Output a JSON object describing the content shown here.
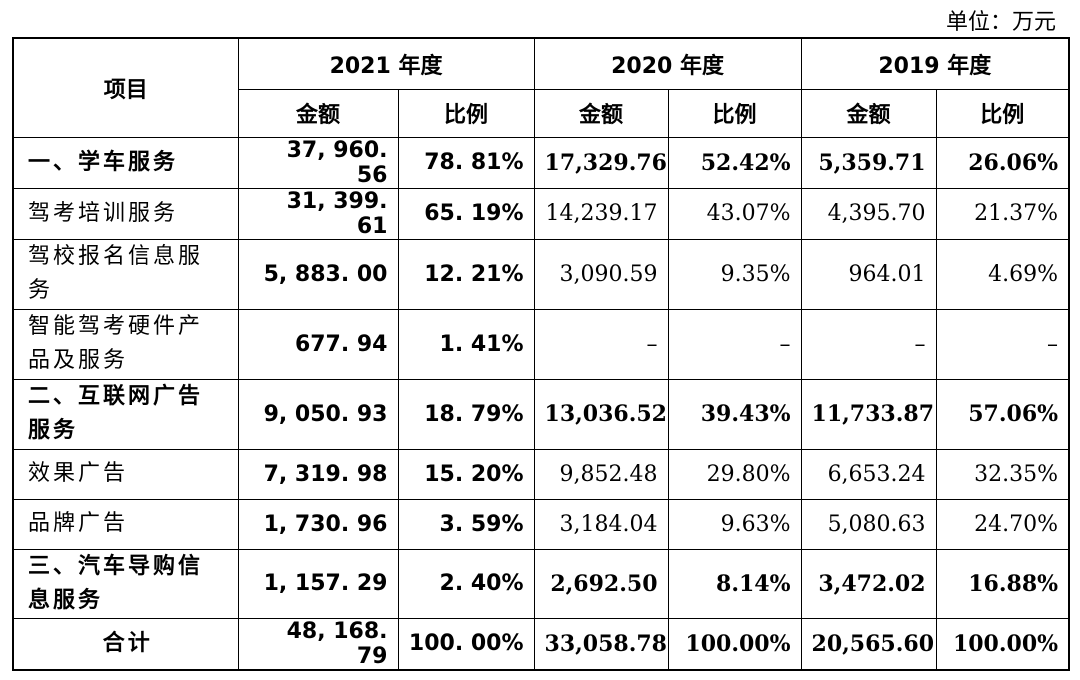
{
  "unit": "单位：万元",
  "header": {
    "item": "项目",
    "years": [
      "2021 年度",
      "2020 年度",
      "2019 年度"
    ],
    "columns": [
      "金额",
      "比例",
      "金额",
      "比例",
      "金额",
      "比例"
    ]
  },
  "rows": [
    {
      "label": "一、学车服务",
      "bold": true,
      "values": [
        "37, 960. 56",
        "78. 81%",
        "17,329.76",
        "52.42%",
        "5,359.71",
        "26.06%"
      ]
    },
    {
      "label": "驾考培训服务",
      "bold": false,
      "values": [
        "31, 399. 61",
        "65. 19%",
        "14,239.17",
        "43.07%",
        "4,395.70",
        "21.37%"
      ]
    },
    {
      "label": "驾校报名信息服务",
      "bold": false,
      "values": [
        "5, 883. 00",
        "12. 21%",
        "3,090.59",
        "9.35%",
        "964.01",
        "4.69%"
      ]
    },
    {
      "label": "智能驾考硬件产品及服务",
      "bold": false,
      "values": [
        "677. 94",
        "1. 41%",
        "–",
        "–",
        "–",
        "–"
      ]
    },
    {
      "label": "二、互联网广告服务",
      "bold": true,
      "values": [
        "9, 050. 93",
        "18. 79%",
        "13,036.52",
        "39.43%",
        "11,733.87",
        "57.06%"
      ]
    },
    {
      "label": "效果广告",
      "bold": false,
      "values": [
        "7, 319. 98",
        "15. 20%",
        "9,852.48",
        "29.80%",
        "6,653.24",
        "32.35%"
      ]
    },
    {
      "label": "品牌广告",
      "bold": false,
      "values": [
        "1, 730. 96",
        "3. 59%",
        "3,184.04",
        "9.63%",
        "5,080.63",
        "24.70%"
      ]
    },
    {
      "label": "三、汽车导购信息服务",
      "bold": true,
      "values": [
        "1, 157. 29",
        "2. 40%",
        "2,692.50",
        "8.14%",
        "3,472.02",
        "16.88%"
      ]
    },
    {
      "label": "合计",
      "bold": true,
      "total": true,
      "values": [
        "48, 168. 79",
        "100. 00%",
        "33,058.78",
        "100.00%",
        "20,565.60",
        "100.00%"
      ]
    }
  ]
}
